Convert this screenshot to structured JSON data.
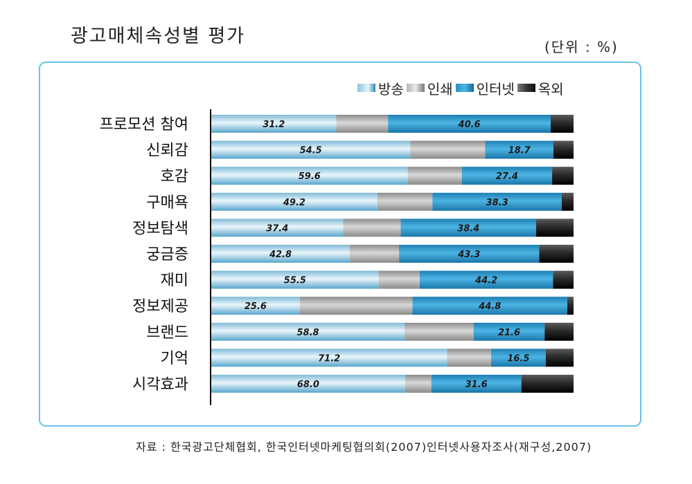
{
  "header": {
    "title": "광고매체속성별 평가",
    "unit": "(단위 : %)"
  },
  "source": "자료 : 한국광고단체협회, 한국인터넷마케팅협의회(2007)인터넷사용자조사(재구성,2007)",
  "chart_data": {
    "type": "bar",
    "orientation": "horizontal",
    "stacked": true,
    "normalized": true,
    "categories": [
      "프로모션 참여",
      "신뢰감",
      "호감",
      "구매욕",
      "정보탐색",
      "궁금증",
      "재미",
      "정보제공",
      "브랜드",
      "기억",
      "시각효과"
    ],
    "series": [
      {
        "name": "방송",
        "values": [
          31.2,
          54.5,
          59.6,
          49.2,
          37.4,
          42.8,
          55.5,
          25.6,
          58.8,
          71.2,
          68.0
        ],
        "labels": [
          "31.2",
          "54.5",
          "59.6",
          "49.2",
          "37.4",
          "42.8",
          "55.5",
          "25.6",
          "58.8",
          "71.2",
          "68.0"
        ]
      },
      {
        "name": "인쇄",
        "values": [
          12.9,
          20.5,
          16.4,
          16.3,
          16.3,
          15.2,
          13.6,
          32.6,
          21.0,
          13.3,
          9.2
        ]
      },
      {
        "name": "인터넷",
        "values": [
          40.6,
          18.7,
          27.4,
          38.3,
          38.4,
          43.3,
          44.2,
          44.8,
          21.6,
          16.5,
          31.6
        ],
        "labels": [
          "40.6",
          "18.7",
          "27.4",
          "38.3",
          "38.4",
          "43.3",
          "44.2",
          "44.8",
          "21.6",
          "16.5",
          "31.6"
        ]
      },
      {
        "name": "옥외",
        "values": [
          5.7,
          5.5,
          6.5,
          3.5,
          10.6,
          10.6,
          6.8,
          1.8,
          8.8,
          8.4,
          18.3
        ]
      }
    ],
    "legend_position": "top-right",
    "colors": {
      "방송": "#bfe3f4",
      "인쇄": "#b0b0b0",
      "인터넷": "#3aa3d6",
      "옥외": "#333333",
      "frame": "#67c3ec"
    }
  }
}
